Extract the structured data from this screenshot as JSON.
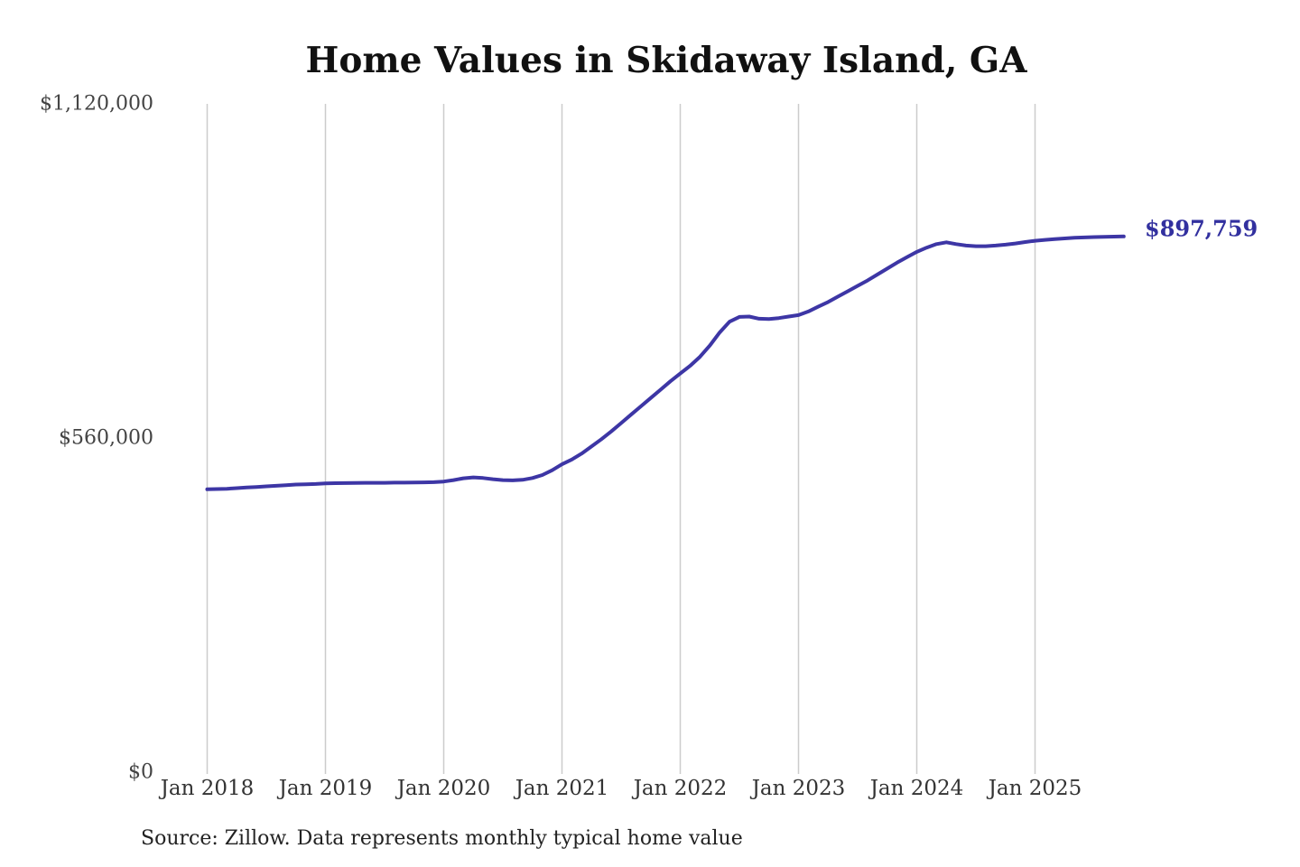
{
  "chart_data": {
    "type": "line",
    "title": "Home Values in Skidaway Island, GA",
    "source_note": "Source: Zillow. Data represents monthly typical home value",
    "current_value_label": "$897,759",
    "line_color": "#3d36a5",
    "value_label_color": "#32309f",
    "grid_color": "#cccccc",
    "grid": "vertical-only",
    "legend": "none",
    "x_start": "Jan 2018",
    "x_end": "Oct 2025",
    "x_interval": "monthly",
    "x_tick_labels": [
      "Jan 2018",
      "Jan 2019",
      "Jan 2020",
      "Jan 2021",
      "Jan 2022",
      "Jan 2023",
      "Jan 2024",
      "Jan 2025"
    ],
    "y_ticks": [
      {
        "label": "$0",
        "value": 0
      },
      {
        "label": "$560,000",
        "value": 560000
      },
      {
        "label": "$1,120,000",
        "value": 1120000
      }
    ],
    "ylim": [
      0,
      1120000
    ],
    "series": [
      {
        "name": "Monthly typical home value (USD)",
        "values": [
          474000,
          474500,
          475000,
          476000,
          477000,
          478000,
          479000,
          480000,
          481000,
          482000,
          482500,
          483000,
          484000,
          484300,
          484500,
          484800,
          485000,
          485000,
          485000,
          485200,
          485300,
          485500,
          485700,
          486000,
          487000,
          489500,
          492500,
          494000,
          493000,
          491000,
          489500,
          489000,
          490000,
          493000,
          498000,
          506000,
          516000,
          524000,
          534000,
          546000,
          558000,
          571000,
          585000,
          599000,
          613000,
          627000,
          641000,
          655000,
          668000,
          681000,
          696000,
          715000,
          737000,
          755000,
          763000,
          763500,
          760000,
          759500,
          761000,
          763500,
          766000,
          772000,
          780000,
          788000,
          797000,
          806000,
          815000,
          824000,
          834000,
          844000,
          854000,
          863000,
          872000,
          879000,
          885000,
          888000,
          885000,
          882500,
          881500,
          881500,
          882500,
          884000,
          886000,
          888500,
          890500,
          892000,
          893500,
          894500,
          895500,
          896200,
          896800,
          897200,
          897500,
          897759
        ]
      }
    ]
  }
}
